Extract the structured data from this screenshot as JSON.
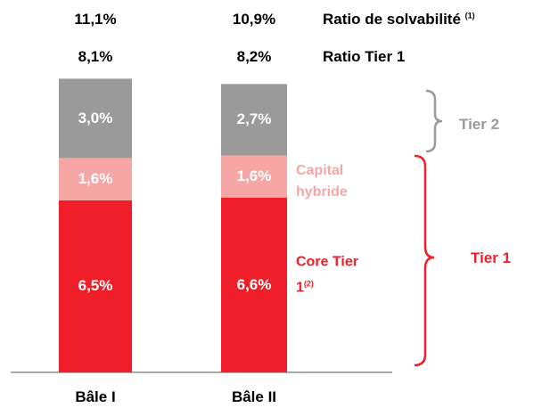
{
  "chart_data": {
    "type": "stacked_bar",
    "categories": [
      "Bâle I",
      "Bâle II"
    ],
    "series": [
      {
        "name": "Core Tier 1",
        "note": "(2)",
        "color": "#f01e28",
        "values": [
          6.5,
          6.6
        ],
        "value_labels": [
          "6,5%",
          "6,6%"
        ]
      },
      {
        "name": "Capital hybride",
        "color": "#f7a6a6",
        "values": [
          1.6,
          1.6
        ],
        "value_labels": [
          "1,6%",
          "1,6%"
        ]
      },
      {
        "name": "Tier 2",
        "color": "#9a9a9a",
        "values": [
          3.0,
          2.7
        ],
        "value_labels": [
          "3,0%",
          "2,7%"
        ]
      }
    ],
    "totals": [
      {
        "label": "Ratio de solvabilité",
        "note": "(1)",
        "values": [
          11.1,
          10.9
        ],
        "value_labels": [
          "11,1%",
          "10,9%"
        ]
      },
      {
        "label": "Ratio Tier 1",
        "values": [
          8.1,
          8.2
        ],
        "value_labels": [
          "8,1%",
          "8,2%"
        ]
      }
    ],
    "brackets": [
      {
        "label": "Tier 2",
        "color": "#9a9a9a"
      },
      {
        "label": "Tier 1",
        "color": "#f01e28"
      }
    ]
  }
}
